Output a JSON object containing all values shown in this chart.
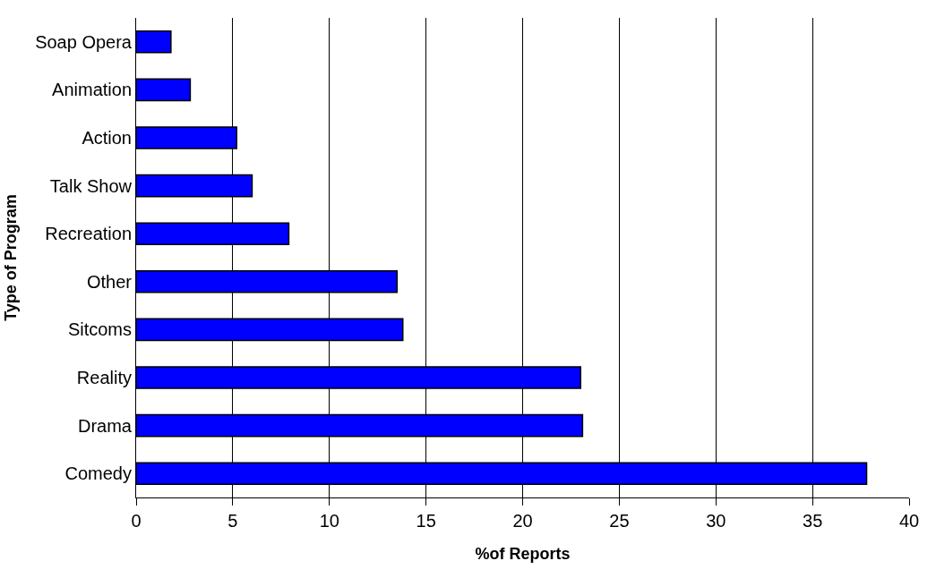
{
  "chart_data": {
    "type": "bar",
    "orientation": "horizontal",
    "xlabel": "%of Reports",
    "ylabel": "Type of Program",
    "categories": [
      "Soap Opera",
      "Animation",
      "Action",
      "Talk Show",
      "Recreation",
      "Other",
      "Sitcoms",
      "Reality",
      "Drama",
      "Comedy"
    ],
    "values": [
      1.8,
      2.8,
      5.2,
      6.0,
      7.9,
      13.5,
      13.8,
      23.0,
      23.1,
      37.8
    ],
    "color": "#0000ff",
    "xlim": [
      0,
      40
    ],
    "xticks": [
      0,
      5,
      10,
      15,
      20,
      25,
      30,
      35,
      40
    ],
    "grid": "x",
    "legend": false
  }
}
